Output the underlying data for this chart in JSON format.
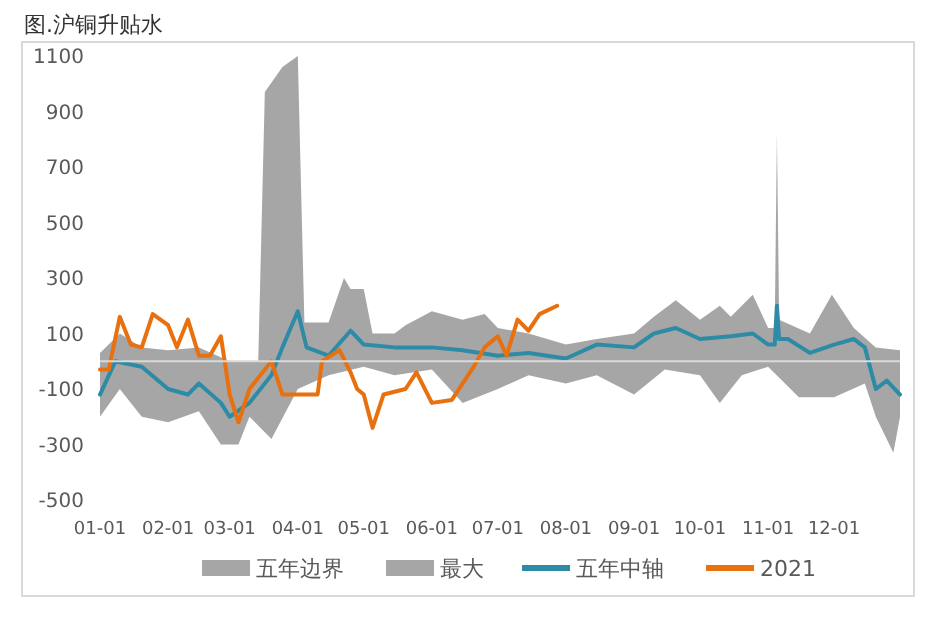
{
  "chart_data": {
    "type": "line",
    "title": "图.沪铜升贴水",
    "xlim": [
      "--01-01",
      "--12-31"
    ],
    "xticks": [
      {
        "value": "--01-01",
        "label": "01-01"
      },
      {
        "value": "--02-01",
        "label": "02-01"
      },
      {
        "value": "--03-01",
        "label": "03-01"
      },
      {
        "value": "--04-01",
        "label": "04-01"
      },
      {
        "value": "--05-01",
        "label": "05-01"
      },
      {
        "value": "--06-01",
        "label": "06-01"
      },
      {
        "value": "--07-01",
        "label": "07-01"
      },
      {
        "value": "--08-01",
        "label": "08-01"
      },
      {
        "value": "--09-01",
        "label": "09-01"
      },
      {
        "value": "--10-01",
        "label": "10-01"
      },
      {
        "value": "--11-01",
        "label": "11-01"
      },
      {
        "value": "--12-01",
        "label": "12-01"
      }
    ],
    "ylim": [
      -500,
      1100
    ],
    "yticks": [
      -500,
      -300,
      -100,
      100,
      300,
      500,
      700,
      900,
      1100
    ],
    "grid": false,
    "legend": "bottom",
    "series": [
      {
        "name": "最大",
        "type": "area",
        "color": "#a6a6a6",
        "x": [
          "--01-01",
          "--01-10",
          "--01-20",
          "--02-01",
          "--02-15",
          "--03-01",
          "--03-10",
          "--03-14",
          "--03-17",
          "--03-25",
          "--04-01",
          "--04-04",
          "--04-15",
          "--04-22",
          "--04-25",
          "--05-01",
          "--05-05",
          "--05-15",
          "--05-20",
          "--06-01",
          "--06-15",
          "--06-25",
          "--07-01",
          "--07-15",
          "--08-01",
          "--08-15",
          "--09-01",
          "--09-10",
          "--09-20",
          "--10-01",
          "--10-10",
          "--10-15",
          "--10-25",
          "--11-01",
          "--11-04",
          "--11-05",
          "--11-06",
          "--11-20",
          "--11-30",
          "--12-10",
          "--12-20",
          "--12-31"
        ],
        "values": [
          30,
          100,
          50,
          40,
          50,
          0,
          0,
          0,
          970,
          1060,
          1100,
          140,
          140,
          300,
          260,
          260,
          100,
          100,
          130,
          180,
          150,
          170,
          120,
          100,
          60,
          80,
          100,
          160,
          220,
          150,
          200,
          160,
          240,
          120,
          120,
          820,
          150,
          100,
          240,
          120,
          50,
          40
        ]
      },
      {
        "name": "五年边界",
        "type": "area",
        "color": "#a6a6a6",
        "x": [
          "--01-01",
          "--01-10",
          "--01-20",
          "--02-01",
          "--02-15",
          "--02-25",
          "--03-05",
          "--03-10",
          "--03-20",
          "--04-01",
          "--04-15",
          "--05-01",
          "--05-15",
          "--06-01",
          "--06-15",
          "--07-01",
          "--07-15",
          "--08-01",
          "--08-15",
          "--09-01",
          "--09-15",
          "--10-01",
          "--10-10",
          "--10-20",
          "--11-01",
          "--11-15",
          "--12-01",
          "--12-15",
          "--12-20",
          "--12-28",
          "--12-31"
        ],
        "values": [
          -200,
          -100,
          -200,
          -220,
          -180,
          -300,
          -300,
          -200,
          -280,
          -100,
          -50,
          -20,
          -50,
          -30,
          -150,
          -100,
          -50,
          -80,
          -50,
          -120,
          -30,
          -50,
          -150,
          -50,
          -20,
          -130,
          -130,
          -80,
          -200,
          -330,
          -200
        ]
      },
      {
        "name": "五年中轴",
        "color": "#2e8ba6",
        "x": [
          "--01-01",
          "--01-08",
          "--01-20",
          "--02-01",
          "--02-10",
          "--02-15",
          "--02-25",
          "--03-01",
          "--03-10",
          "--03-20",
          "--03-25",
          "--04-01",
          "--04-05",
          "--04-15",
          "--04-25",
          "--05-01",
          "--05-15",
          "--06-01",
          "--06-15",
          "--07-01",
          "--07-15",
          "--08-01",
          "--08-15",
          "--09-01",
          "--09-10",
          "--09-20",
          "--10-01",
          "--10-15",
          "--10-25",
          "--11-01",
          "--11-04",
          "--11-05",
          "--11-06",
          "--11-10",
          "--11-20",
          "--12-01",
          "--12-10",
          "--12-15",
          "--12-20",
          "--12-25",
          "--12-31"
        ],
        "values": [
          -120,
          0,
          -20,
          -100,
          -120,
          -80,
          -150,
          -200,
          -150,
          -50,
          50,
          180,
          50,
          20,
          110,
          60,
          50,
          50,
          40,
          20,
          30,
          10,
          60,
          50,
          100,
          120,
          80,
          90,
          100,
          60,
          60,
          200,
          80,
          80,
          30,
          60,
          80,
          50,
          -100,
          -70,
          -120
        ]
      },
      {
        "name": "2021",
        "color": "#e8700e",
        "x": [
          "--01-01",
          "--01-05",
          "--01-10",
          "--01-15",
          "--01-20",
          "--01-25",
          "--02-01",
          "--02-05",
          "--02-10",
          "--02-15",
          "--02-20",
          "--02-25",
          "--03-01",
          "--03-05",
          "--03-10",
          "--03-15",
          "--03-20",
          "--03-25",
          "--04-01",
          "--04-10",
          "--04-12",
          "--04-20",
          "--04-25",
          "--04-28",
          "--05-01",
          "--05-05",
          "--05-10",
          "--05-20",
          "--05-25",
          "--06-01",
          "--06-10",
          "--06-20",
          "--06-25",
          "--07-01",
          "--07-05",
          "--07-10",
          "--07-15",
          "--07-20",
          "--07-28"
        ],
        "values": [
          -30,
          -30,
          160,
          60,
          50,
          170,
          130,
          50,
          150,
          20,
          20,
          90,
          -120,
          -220,
          -100,
          -50,
          0,
          -120,
          -120,
          -120,
          0,
          40,
          -40,
          -100,
          -120,
          -240,
          -120,
          -100,
          -40,
          -150,
          -140,
          -20,
          50,
          90,
          20,
          150,
          110,
          170,
          200
        ]
      }
    ]
  }
}
